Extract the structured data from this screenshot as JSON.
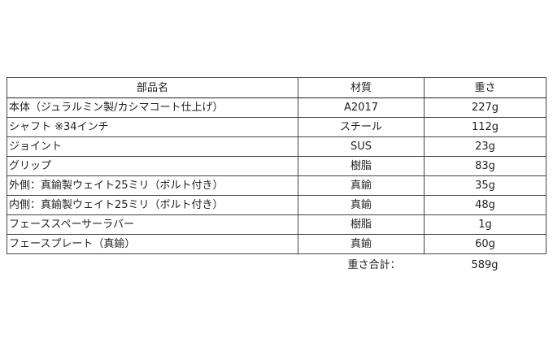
{
  "table": {
    "headers": [
      "部品名",
      "材質",
      "重さ"
    ],
    "rows": [
      {
        "name": "本体（ジュラルミン製/カシマコート仕上げ）",
        "material": "A2017",
        "weight": "227g"
      },
      {
        "name": "シャフト ※34インチ",
        "material": "スチール",
        "weight": "112g"
      },
      {
        "name": "ジョイント",
        "material": "SUS",
        "weight": "23g"
      },
      {
        "name": "グリップ",
        "material": "樹脂",
        "weight": "83g"
      },
      {
        "name": "外側：真鍮製ウェイト25ミリ（ボルト付き）",
        "material": "真鍮",
        "weight": "35g"
      },
      {
        "name": "内側：真鍮製ウェイト25ミリ（ボルト付き）",
        "material": "真鍮",
        "weight": "48g"
      },
      {
        "name": "フェーススペーサーラバー",
        "material": "樹脂",
        "weight": "1g"
      },
      {
        "name": "フェースプレート（真鍮）",
        "material": "真鍮",
        "weight": "60g"
      }
    ]
  },
  "total": {
    "label": "重さ合計：",
    "value": "589g"
  }
}
